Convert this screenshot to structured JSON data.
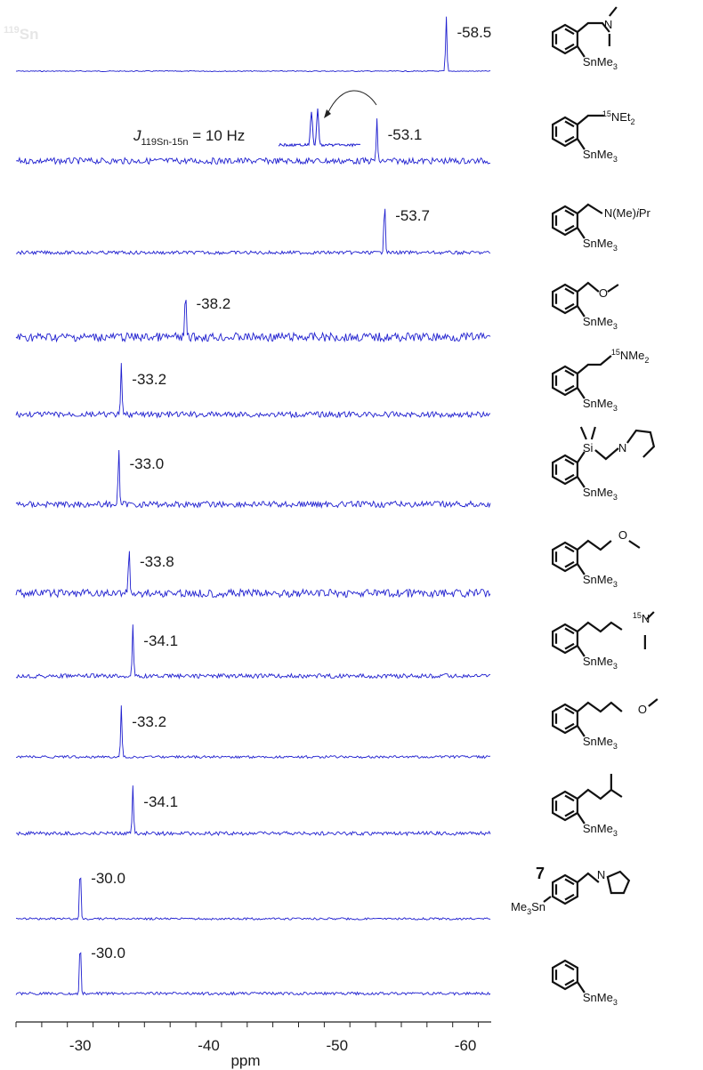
{
  "nucleus": {
    "mass": "119",
    "element": "Sn"
  },
  "coupling": {
    "symbol": "J",
    "subscript": "119Sn-15n",
    "rest": " = 10 Hz"
  },
  "chart_data": {
    "type": "line",
    "xlabel": "ppm",
    "xlim": [
      -25,
      -62
    ],
    "x_reversed": true,
    "x_ticks": [
      -30,
      -40,
      -50,
      -60
    ],
    "x_tick_labels": [
      "-30",
      "-40",
      "-50",
      "-60"
    ],
    "minor_tick_step": 2,
    "trace_color": "#1f1fcf",
    "series": [
      {
        "peak": -58.5,
        "label": "-58.5",
        "noise": 0.15,
        "structure": "s1"
      },
      {
        "peak": -53.1,
        "label": "-53.1",
        "noise": 1.0,
        "structure": "s2"
      },
      {
        "peak": -53.7,
        "label": "-53.7",
        "noise": 0.55,
        "structure": "s3"
      },
      {
        "peak": -38.2,
        "label": "-38.2",
        "noise": 1.4,
        "structure": "s4"
      },
      {
        "peak": -33.2,
        "label": "-33.2",
        "noise": 0.9,
        "structure": "s5"
      },
      {
        "peak": -33.0,
        "label": "-33.0",
        "noise": 1.0,
        "structure": "s6"
      },
      {
        "peak": -33.8,
        "label": "-33.8",
        "noise": 1.3,
        "structure": "s7"
      },
      {
        "peak": -34.1,
        "label": "-34.1",
        "noise": 0.7,
        "structure": "s8"
      },
      {
        "peak": -33.2,
        "label": "-33.2",
        "noise": 0.4,
        "structure": "s9"
      },
      {
        "peak": -34.1,
        "label": "-34.1",
        "noise": 0.6,
        "structure": "s10"
      },
      {
        "peak": -30.0,
        "label": "-30.0",
        "noise": 0.35,
        "structure": "s11"
      },
      {
        "peak": -30.0,
        "label": "-30.0",
        "noise": 0.45,
        "structure": "s12"
      }
    ]
  },
  "structures": {
    "sn_me3": "SnMe",
    "me3_sn": "Me",
    "sn_sub": "3",
    "s2_label": "NEt",
    "s2_iso": "15",
    "s2_sub": "2",
    "s3_label": "N(Me)",
    "s3_ipr": "i",
    "s3_pr": "Pr",
    "s5_iso": "15",
    "s5_label": "NMe",
    "s5_sub": "2",
    "s8_iso": "15",
    "n": "N",
    "o": "O",
    "si": "Si",
    "compound_number": "7",
    "sn": "Sn"
  }
}
